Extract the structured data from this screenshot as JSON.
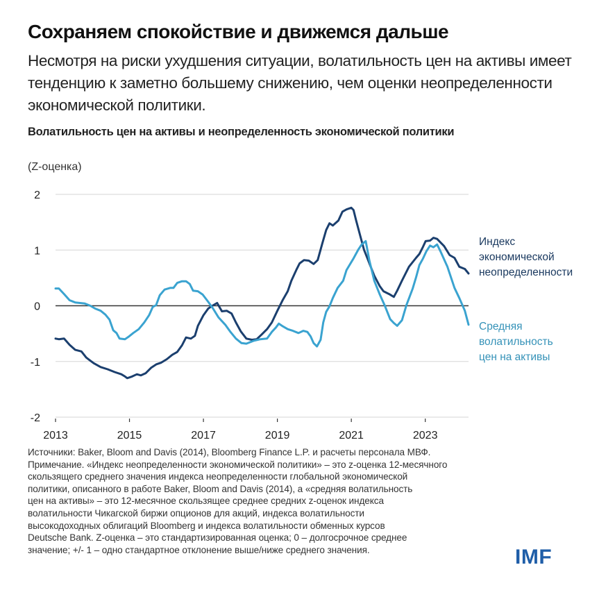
{
  "header": {
    "title": "Сохраняем спокойствие и движемся дальше",
    "subtitle": "Несмотря на риски ухудшения ситуации, волатильность цен на активы имеет тенденцию к заметно большему снижению, чем оценки неопределенности экономической политики."
  },
  "chart_data": {
    "type": "line",
    "title": "Волатильность цен на активы и неопределенность экономической политики",
    "ylabel": "(Z-оценка)",
    "xlabel": "",
    "xlim": [
      2013,
      2024.17
    ],
    "ylim": [
      -2,
      2
    ],
    "x_ticks": [
      2013,
      2015,
      2017,
      2019,
      2021,
      2023
    ],
    "x_tick_labels": [
      "2013",
      "2015",
      "2017",
      "2019",
      "2021",
      "2023"
    ],
    "y_ticks": [
      2,
      1,
      0,
      -1,
      -2
    ],
    "y_tick_labels": [
      "2",
      "1",
      "0",
      "-1",
      "-2"
    ],
    "grid": "horizontal",
    "legend_placement": "right (inline labels)",
    "series": [
      {
        "name": "Индекс экономической неопределенности",
        "label_lines": [
          "Индекс",
          "экономической",
          "неопределенности"
        ],
        "color": "#1b3f6e",
        "points": [
          [
            2013.0,
            -0.59
          ],
          [
            2013.09,
            -0.6
          ],
          [
            2013.23,
            -0.59
          ],
          [
            2013.38,
            -0.7
          ],
          [
            2013.53,
            -0.79
          ],
          [
            2013.7,
            -0.82
          ],
          [
            2013.83,
            -0.93
          ],
          [
            2014.03,
            -1.03
          ],
          [
            2014.22,
            -1.1
          ],
          [
            2014.41,
            -1.14
          ],
          [
            2014.6,
            -1.19
          ],
          [
            2014.78,
            -1.23
          ],
          [
            2014.88,
            -1.27
          ],
          [
            2014.94,
            -1.3
          ],
          [
            2015.07,
            -1.27
          ],
          [
            2015.2,
            -1.23
          ],
          [
            2015.31,
            -1.25
          ],
          [
            2015.44,
            -1.21
          ],
          [
            2015.59,
            -1.11
          ],
          [
            2015.73,
            -1.05
          ],
          [
            2015.86,
            -1.02
          ],
          [
            2016.01,
            -0.96
          ],
          [
            2016.16,
            -0.88
          ],
          [
            2016.29,
            -0.83
          ],
          [
            2016.42,
            -0.71
          ],
          [
            2016.53,
            -0.57
          ],
          [
            2016.66,
            -0.59
          ],
          [
            2016.77,
            -0.54
          ],
          [
            2016.85,
            -0.36
          ],
          [
            2017.0,
            -0.17
          ],
          [
            2017.13,
            -0.05
          ],
          [
            2017.24,
            0.0
          ],
          [
            2017.37,
            0.05
          ],
          [
            2017.5,
            -0.1
          ],
          [
            2017.63,
            -0.09
          ],
          [
            2017.76,
            -0.14
          ],
          [
            2017.88,
            -0.3
          ],
          [
            2018.01,
            -0.46
          ],
          [
            2018.16,
            -0.59
          ],
          [
            2018.31,
            -0.61
          ],
          [
            2018.44,
            -0.6
          ],
          [
            2018.57,
            -0.52
          ],
          [
            2018.72,
            -0.42
          ],
          [
            2018.85,
            -0.3
          ],
          [
            2019.0,
            -0.09
          ],
          [
            2019.15,
            0.11
          ],
          [
            2019.28,
            0.26
          ],
          [
            2019.38,
            0.45
          ],
          [
            2019.51,
            0.64
          ],
          [
            2019.6,
            0.76
          ],
          [
            2019.72,
            0.82
          ],
          [
            2019.85,
            0.81
          ],
          [
            2019.98,
            0.75
          ],
          [
            2020.09,
            0.82
          ],
          [
            2020.22,
            1.13
          ],
          [
            2020.32,
            1.36
          ],
          [
            2020.41,
            1.48
          ],
          [
            2020.5,
            1.44
          ],
          [
            2020.65,
            1.53
          ],
          [
            2020.76,
            1.69
          ],
          [
            2020.87,
            1.73
          ],
          [
            2021.0,
            1.76
          ],
          [
            2021.06,
            1.72
          ],
          [
            2021.13,
            1.53
          ],
          [
            2021.24,
            1.26
          ],
          [
            2021.34,
            1.01
          ],
          [
            2021.49,
            0.76
          ],
          [
            2021.62,
            0.54
          ],
          [
            2021.77,
            0.35
          ],
          [
            2021.87,
            0.26
          ],
          [
            2022.02,
            0.21
          ],
          [
            2022.15,
            0.16
          ],
          [
            2022.24,
            0.27
          ],
          [
            2022.37,
            0.45
          ],
          [
            2022.56,
            0.7
          ],
          [
            2022.75,
            0.86
          ],
          [
            2022.84,
            0.93
          ],
          [
            2022.94,
            1.06
          ],
          [
            2023.01,
            1.16
          ],
          [
            2023.13,
            1.17
          ],
          [
            2023.22,
            1.22
          ],
          [
            2023.32,
            1.2
          ],
          [
            2023.51,
            1.07
          ],
          [
            2023.66,
            0.91
          ],
          [
            2023.79,
            0.86
          ],
          [
            2023.92,
            0.7
          ],
          [
            2024.07,
            0.66
          ],
          [
            2024.17,
            0.58
          ]
        ]
      },
      {
        "name": "Средняя волатильность цен на активы",
        "label_lines": [
          "Средняя",
          "волатильность",
          "цен на активы"
        ],
        "color": "#3aa3d0",
        "points": [
          [
            2013.0,
            0.31
          ],
          [
            2013.09,
            0.31
          ],
          [
            2013.23,
            0.21
          ],
          [
            2013.38,
            0.1
          ],
          [
            2013.53,
            0.06
          ],
          [
            2013.66,
            0.05
          ],
          [
            2013.79,
            0.04
          ],
          [
            2013.94,
            0.0
          ],
          [
            2014.07,
            -0.05
          ],
          [
            2014.22,
            -0.09
          ],
          [
            2014.35,
            -0.16
          ],
          [
            2014.46,
            -0.25
          ],
          [
            2014.56,
            -0.44
          ],
          [
            2014.65,
            -0.49
          ],
          [
            2014.73,
            -0.59
          ],
          [
            2014.88,
            -0.6
          ],
          [
            2014.97,
            -0.56
          ],
          [
            2015.1,
            -0.49
          ],
          [
            2015.25,
            -0.42
          ],
          [
            2015.4,
            -0.3
          ],
          [
            2015.53,
            -0.17
          ],
          [
            2015.63,
            -0.02
          ],
          [
            2015.72,
            0.01
          ],
          [
            2015.82,
            0.19
          ],
          [
            2015.95,
            0.29
          ],
          [
            2016.1,
            0.32
          ],
          [
            2016.19,
            0.32
          ],
          [
            2016.29,
            0.41
          ],
          [
            2016.42,
            0.44
          ],
          [
            2016.53,
            0.44
          ],
          [
            2016.63,
            0.39
          ],
          [
            2016.72,
            0.27
          ],
          [
            2016.85,
            0.26
          ],
          [
            2016.98,
            0.2
          ],
          [
            2017.13,
            0.07
          ],
          [
            2017.26,
            -0.05
          ],
          [
            2017.41,
            -0.21
          ],
          [
            2017.59,
            -0.34
          ],
          [
            2017.72,
            -0.46
          ],
          [
            2017.88,
            -0.59
          ],
          [
            2018.03,
            -0.67
          ],
          [
            2018.16,
            -0.68
          ],
          [
            2018.35,
            -0.63
          ],
          [
            2018.54,
            -0.6
          ],
          [
            2018.72,
            -0.59
          ],
          [
            2018.85,
            -0.47
          ],
          [
            2018.96,
            -0.39
          ],
          [
            2019.04,
            -0.32
          ],
          [
            2019.15,
            -0.37
          ],
          [
            2019.28,
            -0.42
          ],
          [
            2019.42,
            -0.45
          ],
          [
            2019.57,
            -0.49
          ],
          [
            2019.7,
            -0.45
          ],
          [
            2019.81,
            -0.47
          ],
          [
            2019.9,
            -0.55
          ],
          [
            2019.98,
            -0.67
          ],
          [
            2020.07,
            -0.73
          ],
          [
            2020.17,
            -0.61
          ],
          [
            2020.24,
            -0.3
          ],
          [
            2020.32,
            -0.11
          ],
          [
            2020.41,
            -0.01
          ],
          [
            2020.5,
            0.14
          ],
          [
            2020.63,
            0.32
          ],
          [
            2020.78,
            0.45
          ],
          [
            2020.87,
            0.64
          ],
          [
            2021.06,
            0.85
          ],
          [
            2021.19,
            1.01
          ],
          [
            2021.28,
            1.1
          ],
          [
            2021.39,
            1.16
          ],
          [
            2021.49,
            0.81
          ],
          [
            2021.62,
            0.45
          ],
          [
            2021.77,
            0.2
          ],
          [
            2021.9,
            0.01
          ],
          [
            2022.05,
            -0.24
          ],
          [
            2022.15,
            -0.31
          ],
          [
            2022.24,
            -0.36
          ],
          [
            2022.37,
            -0.26
          ],
          [
            2022.49,
            0.01
          ],
          [
            2022.66,
            0.31
          ],
          [
            2022.75,
            0.51
          ],
          [
            2022.84,
            0.73
          ],
          [
            2022.94,
            0.85
          ],
          [
            2023.03,
            0.98
          ],
          [
            2023.13,
            1.08
          ],
          [
            2023.22,
            1.05
          ],
          [
            2023.32,
            1.1
          ],
          [
            2023.41,
            0.98
          ],
          [
            2023.6,
            0.7
          ],
          [
            2023.79,
            0.32
          ],
          [
            2023.92,
            0.14
          ],
          [
            2024.07,
            -0.09
          ],
          [
            2024.17,
            -0.34
          ]
        ]
      }
    ]
  },
  "notes": {
    "lines": [
      "Источники: Baker, Bloom and Davis (2014), Bloomberg Finance L.P. и расчеты персонала МВФ.",
      "Примечание. «Индекс неопределенности экономической политики» – это z-оценка 12-месячного",
      "скользящего среднего значения индекса неопределенности глобальной экономической",
      "политики, описанного в работе Baker, Bloom and Davis (2014), а «средняя волатильность",
      "цен на активы» – это 12-месячное скользящее среднее средних  z-оценок индекса",
      "волатильности Чикагской биржи опционов для акций, индекса волатильности",
      "высокодоходных облигаций Bloomberg и индекса волатильности обменных курсов",
      "Deutsche Bank. Z-оценка – это стандартизированная оценка; 0 –  долгосрочное среднее",
      "значение; +/- 1 – одно стандартное отклонение выше/ниже среднего значения."
    ]
  },
  "branding": {
    "logo_text": "IMF",
    "logo_color": "#1f5ea8"
  }
}
